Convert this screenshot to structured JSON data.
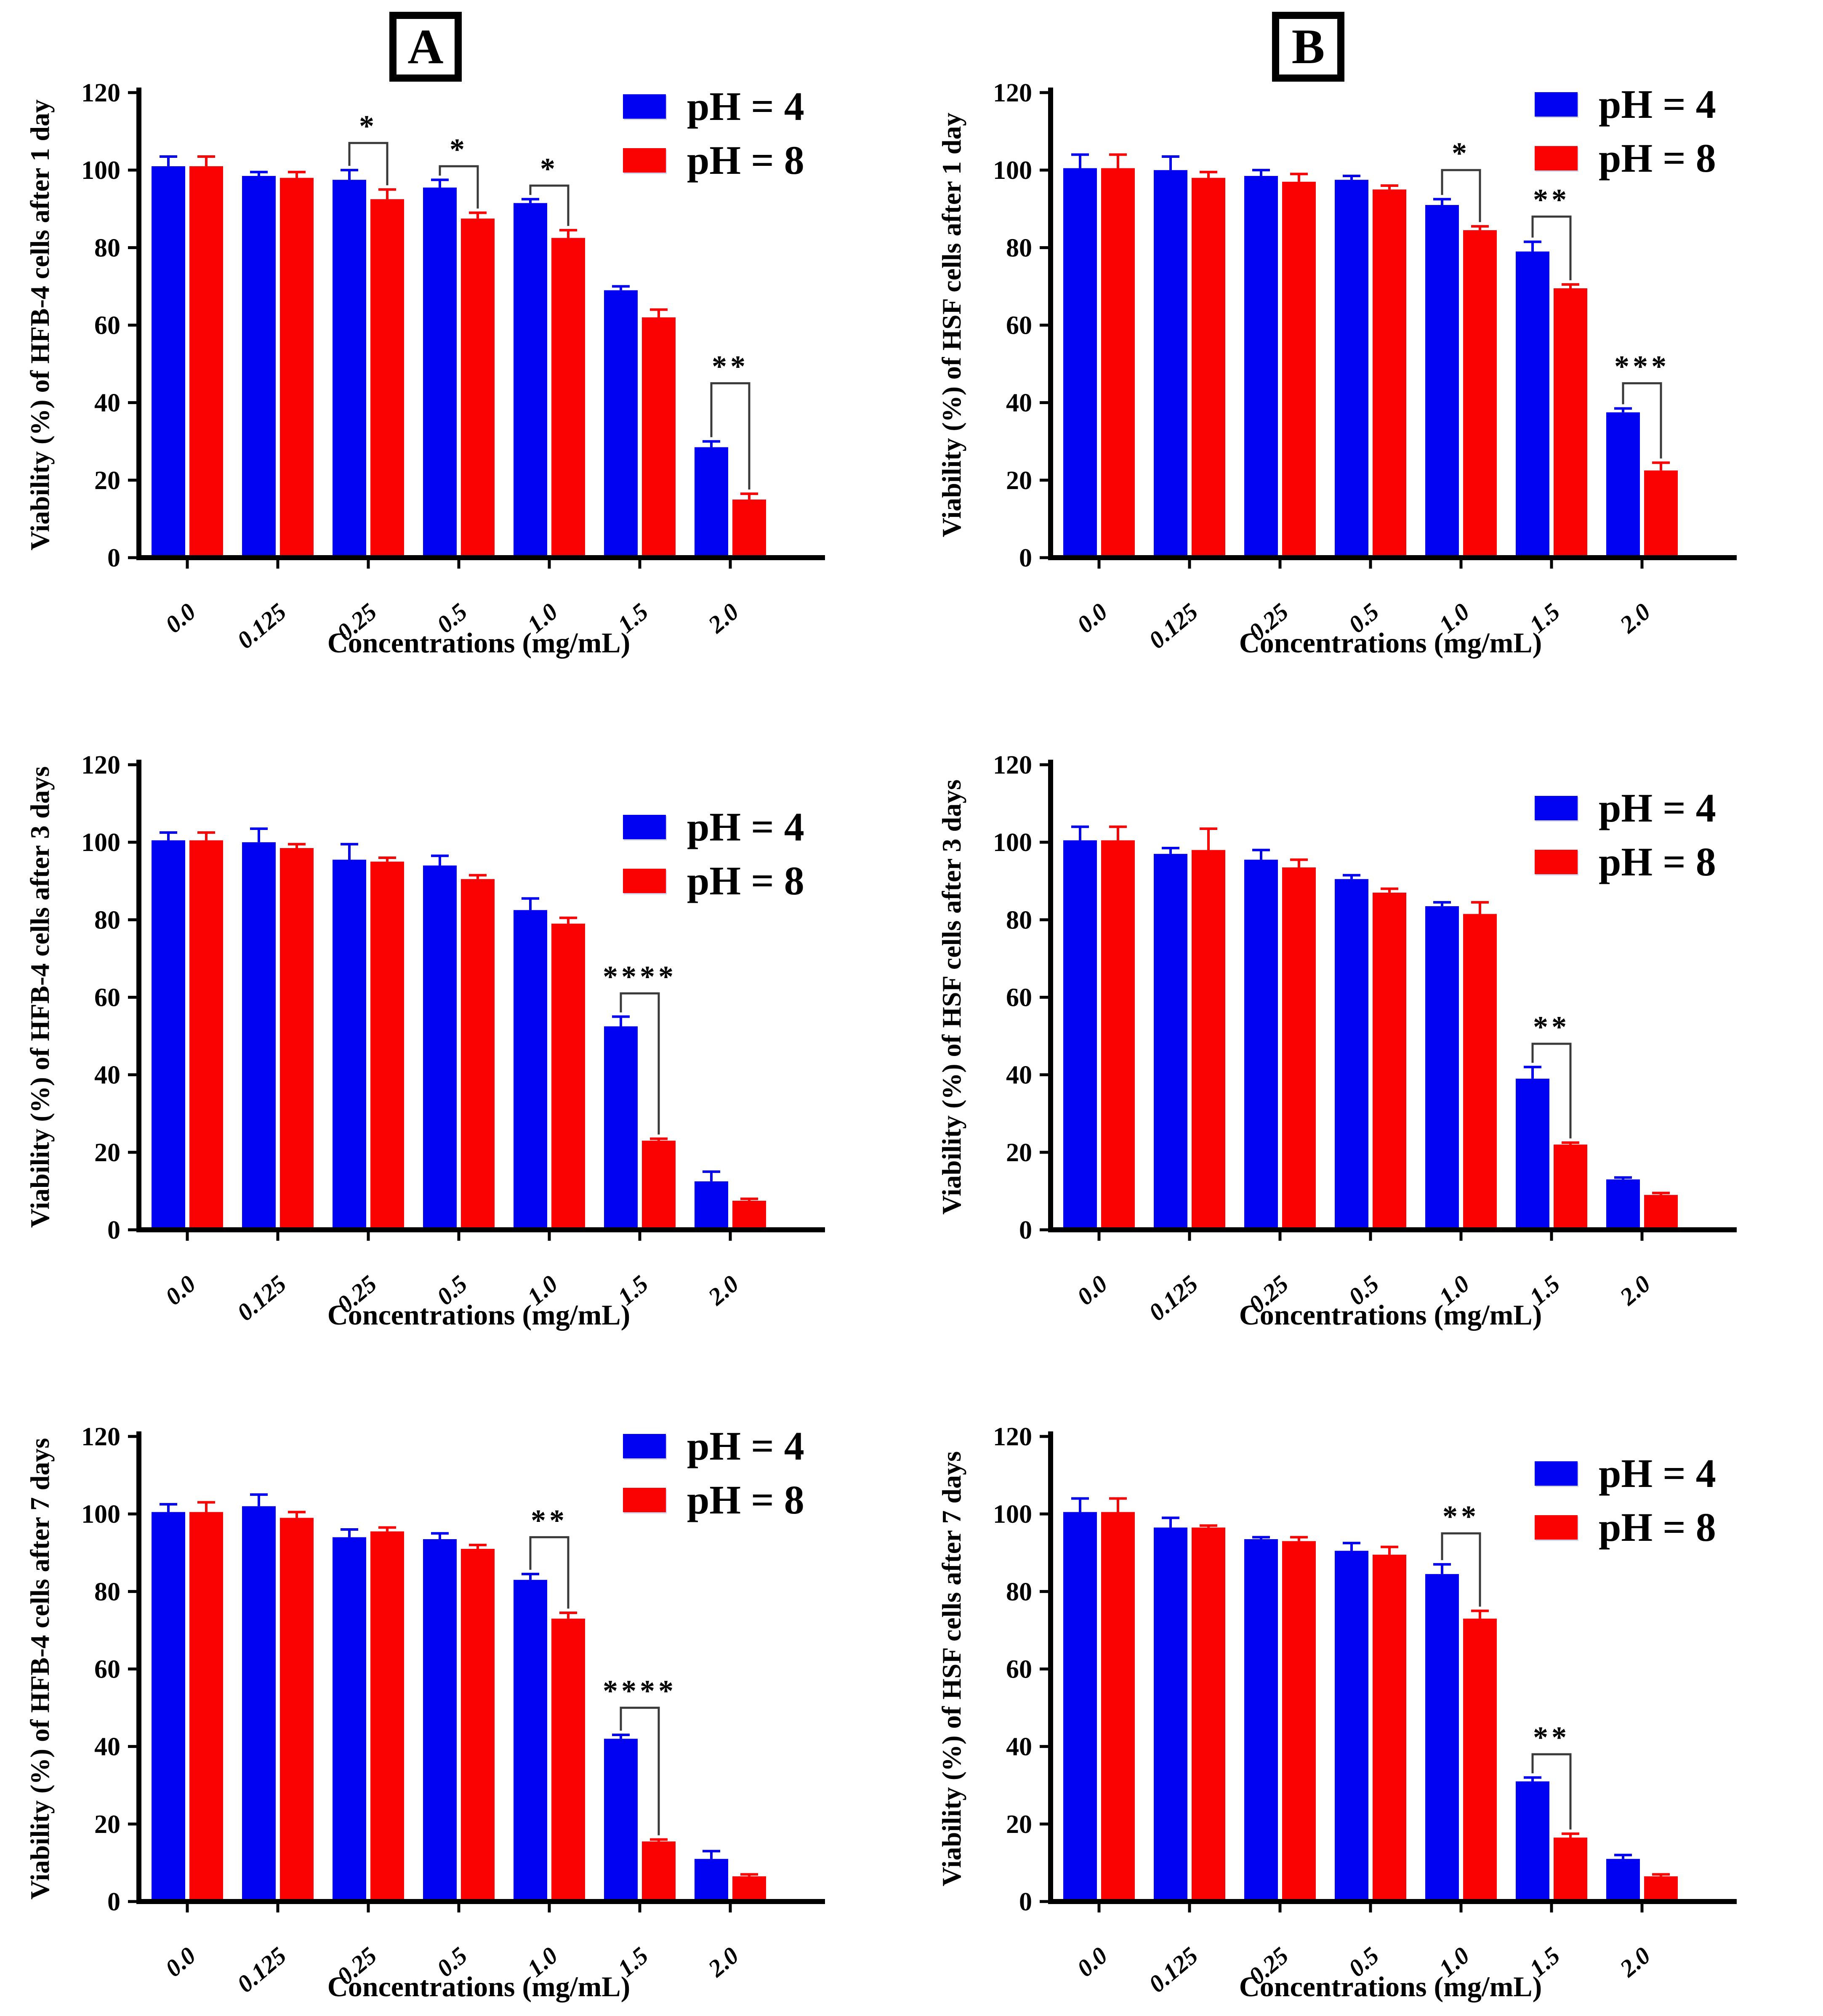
{
  "figure": {
    "panel_letters": [
      "A",
      "B"
    ],
    "colors": {
      "ph4": "#0202f2",
      "ph8": "#fa0202",
      "axis": "#000000",
      "bracket": "#3a3a3a",
      "text": "#000000"
    },
    "legend": {
      "ph4_label": "pH = 4",
      "ph8_label": "pH = 8"
    }
  },
  "chart_data": [
    {
      "type": "bar",
      "panel": "A",
      "timepoint": "1 day",
      "ylabel": "Viability (%) of HFB-4 cells after 1 day",
      "xlabel": "Concentrations (mg/mL)",
      "categories": [
        "0.0",
        "0.125",
        "0.25",
        "0.5",
        "1.0",
        "1.5",
        "2.0"
      ],
      "ylim": [
        0,
        120
      ],
      "yticks": [
        0,
        20,
        40,
        60,
        80,
        100,
        120
      ],
      "legend_position": "top-right",
      "grid": false,
      "series": [
        {
          "name": "pH = 4",
          "values": [
            101,
            98.5,
            97.5,
            95.5,
            91.5,
            69,
            28.5
          ],
          "errors": [
            2.5,
            1,
            2.5,
            2,
            1,
            1,
            1.5
          ]
        },
        {
          "name": "pH = 8",
          "values": [
            101,
            98,
            92.5,
            87.5,
            82.5,
            62,
            15
          ],
          "errors": [
            2.5,
            1.5,
            2.5,
            1.5,
            2,
            2,
            1.5
          ]
        }
      ],
      "significance": [
        {
          "category": "0.25",
          "label": "*",
          "bracket_top": 107
        },
        {
          "category": "0.5",
          "label": "*",
          "bracket_top": 101
        },
        {
          "category": "1.0",
          "label": "*",
          "bracket_top": 96
        },
        {
          "category": "2.0",
          "label": "**",
          "bracket_top": 45
        }
      ]
    },
    {
      "type": "bar",
      "panel": "B",
      "timepoint": "1 day",
      "ylabel": "Viability (%) of HSF cells after 1 day",
      "xlabel": "Concentrations (mg/mL)",
      "categories": [
        "0.0",
        "0.125",
        "0.25",
        "0.5",
        "1.0",
        "1.5",
        "2.0"
      ],
      "ylim": [
        0,
        120
      ],
      "yticks": [
        0,
        20,
        40,
        60,
        80,
        100,
        120
      ],
      "legend_position": "top-right",
      "grid": false,
      "series": [
        {
          "name": "pH = 4",
          "values": [
            100.5,
            100,
            98.5,
            97.5,
            91,
            79,
            37.5
          ],
          "errors": [
            3.5,
            3.5,
            1.5,
            1,
            1.5,
            2.5,
            1
          ]
        },
        {
          "name": "pH = 8",
          "values": [
            100.5,
            98,
            97,
            95,
            84.5,
            69.5,
            22.5
          ],
          "errors": [
            3.5,
            1.5,
            2,
            1,
            1,
            1,
            2
          ]
        }
      ],
      "significance": [
        {
          "category": "1.0",
          "label": "*",
          "bracket_top": 100
        },
        {
          "category": "1.5",
          "label": "**",
          "bracket_top": 88
        },
        {
          "category": "2.0",
          "label": "***",
          "bracket_top": 45
        }
      ]
    },
    {
      "type": "bar",
      "panel": "A",
      "timepoint": "3 days",
      "ylabel": "Viability (%) of HFB-4 cells after 3 days",
      "xlabel": "Concentrations (mg/mL)",
      "categories": [
        "0.0",
        "0.125",
        "0.25",
        "0.5",
        "1.0",
        "1.5",
        "2.0"
      ],
      "ylim": [
        0,
        120
      ],
      "yticks": [
        0,
        20,
        40,
        60,
        80,
        100,
        120
      ],
      "legend_position": "top-right",
      "grid": false,
      "series": [
        {
          "name": "pH = 4",
          "values": [
            100.5,
            100,
            95.5,
            94,
            82.5,
            52.5,
            12.5
          ],
          "errors": [
            2,
            3.5,
            4,
            2.5,
            3,
            2.5,
            2.5
          ]
        },
        {
          "name": "pH = 8",
          "values": [
            100.5,
            98.5,
            95,
            90.5,
            79,
            23,
            7.5
          ],
          "errors": [
            2,
            1,
            1,
            1,
            1.5,
            0.5,
            0.5
          ]
        }
      ],
      "significance": [
        {
          "category": "1.5",
          "label": "****",
          "bracket_top": 61
        }
      ]
    },
    {
      "type": "bar",
      "panel": "B",
      "timepoint": "3 days",
      "ylabel": "Viability (%) of HSF cells after 3 days",
      "xlabel": "Concentrations (mg/mL)",
      "categories": [
        "0.0",
        "0.125",
        "0.25",
        "0.5",
        "1.0",
        "1.5",
        "2.0"
      ],
      "ylim": [
        0,
        120
      ],
      "yticks": [
        0,
        20,
        40,
        60,
        80,
        100,
        120
      ],
      "legend_position": "top-right",
      "grid": false,
      "series": [
        {
          "name": "pH = 4",
          "values": [
            100.5,
            97,
            95.5,
            90.5,
            83.5,
            39,
            13
          ],
          "errors": [
            3.5,
            1.5,
            2.5,
            1,
            1,
            3,
            0.5
          ]
        },
        {
          "name": "pH = 8",
          "values": [
            100.5,
            98,
            93.5,
            87,
            81.5,
            22,
            9
          ],
          "errors": [
            3.5,
            5.5,
            2,
            1,
            3,
            0.5,
            0.5
          ]
        }
      ],
      "significance": [
        {
          "category": "1.5",
          "label": "**",
          "bracket_top": 48
        }
      ]
    },
    {
      "type": "bar",
      "panel": "A",
      "timepoint": "7 days",
      "ylabel": "Viability (%) of HFB-4 cells after 7 days",
      "xlabel": "Concentrations (mg/mL)",
      "categories": [
        "0.0",
        "0.125",
        "0.25",
        "0.5",
        "1.0",
        "1.5",
        "2.0"
      ],
      "ylim": [
        0,
        120
      ],
      "yticks": [
        0,
        20,
        40,
        60,
        80,
        100,
        120
      ],
      "legend_position": "top-right",
      "grid": false,
      "series": [
        {
          "name": "pH = 4",
          "values": [
            100.5,
            102,
            94,
            93.5,
            83,
            42,
            11
          ],
          "errors": [
            2,
            3,
            2,
            1.5,
            1.5,
            1,
            2
          ]
        },
        {
          "name": "pH = 8",
          "values": [
            100.5,
            99,
            95.5,
            91,
            73,
            15.5,
            6.5
          ],
          "errors": [
            2.5,
            1.5,
            1,
            1,
            1.5,
            0.5,
            0.5
          ]
        }
      ],
      "significance": [
        {
          "category": "1.0",
          "label": "**",
          "bracket_top": 94
        },
        {
          "category": "1.5",
          "label": "****",
          "bracket_top": 50
        }
      ]
    },
    {
      "type": "bar",
      "panel": "B",
      "timepoint": "7 days",
      "ylabel": "Viability (%) of HSF cells after 7 days",
      "xlabel": "Concentrations (mg/mL)",
      "categories": [
        "0.0",
        "0.125",
        "0.25",
        "0.5",
        "1.0",
        "1.5",
        "2.0"
      ],
      "ylim": [
        0,
        120
      ],
      "yticks": [
        0,
        20,
        40,
        60,
        80,
        100,
        120
      ],
      "legend_position": "top-right",
      "grid": false,
      "series": [
        {
          "name": "pH = 4",
          "values": [
            100.5,
            96.5,
            93.5,
            90.5,
            84.5,
            31,
            11
          ],
          "errors": [
            3.5,
            2.5,
            0.5,
            2,
            2.5,
            1,
            1
          ]
        },
        {
          "name": "pH = 8",
          "values": [
            100.5,
            96.5,
            93,
            89.5,
            73,
            16.5,
            6.5
          ],
          "errors": [
            3.5,
            0.5,
            1,
            2,
            2,
            1,
            0.5
          ]
        }
      ],
      "significance": [
        {
          "category": "1.0",
          "label": "**",
          "bracket_top": 95
        },
        {
          "category": "1.5",
          "label": "**",
          "bracket_top": 38
        }
      ]
    }
  ]
}
